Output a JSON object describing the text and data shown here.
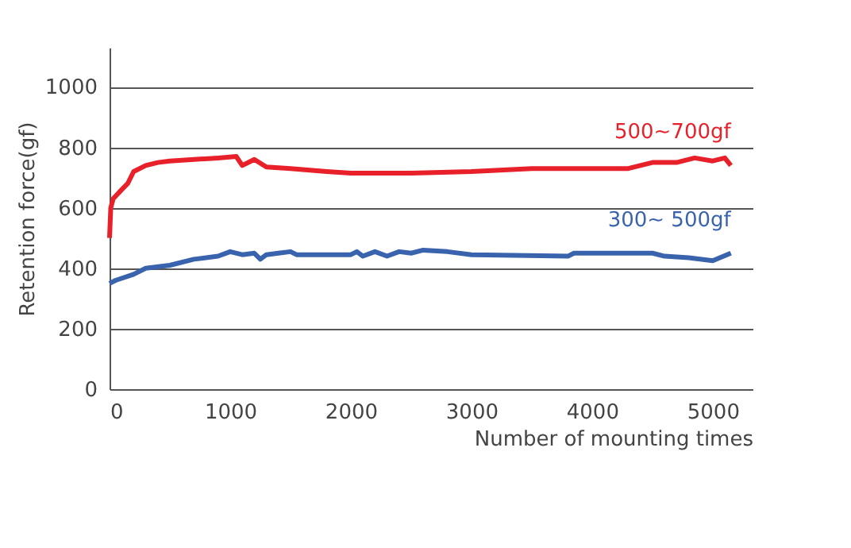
{
  "chart_data": {
    "type": "line",
    "xlabel": "Number of mounting times",
    "ylabel": "Retention force(gf)",
    "xlim": [
      0,
      5330
    ],
    "ylim": [
      0,
      1130
    ],
    "xticks": [
      0,
      1000,
      2000,
      3000,
      4000,
      5000
    ],
    "yticks": [
      0,
      200,
      400,
      600,
      800,
      1000
    ],
    "grid": "y",
    "legend": false,
    "marker": "none",
    "line_style": "solid",
    "series": [
      {
        "name": "500~700gf",
        "color": "#e8202a",
        "x": [
          0,
          10,
          30,
          100,
          150,
          200,
          300,
          400,
          500,
          700,
          900,
          1050,
          1100,
          1200,
          1300,
          1500,
          1800,
          2000,
          2500,
          3000,
          3500,
          4000,
          4300,
          4500,
          4700,
          4850,
          5000,
          5100,
          5150
        ],
        "values": [
          500,
          600,
          630,
          660,
          680,
          720,
          740,
          750,
          755,
          760,
          765,
          770,
          740,
          760,
          735,
          730,
          720,
          715,
          715,
          720,
          730,
          730,
          730,
          750,
          750,
          765,
          755,
          765,
          740
        ]
      },
      {
        "name": "300~ 500gf",
        "color": "#3a63ad",
        "x": [
          0,
          50,
          200,
          300,
          500,
          700,
          900,
          1000,
          1100,
          1200,
          1250,
          1300,
          1400,
          1500,
          1550,
          2000,
          2050,
          2100,
          2200,
          2300,
          2400,
          2500,
          2600,
          2800,
          3000,
          3800,
          3850,
          4500,
          4600,
          4800,
          5000,
          5150
        ],
        "values": [
          350,
          360,
          380,
          400,
          410,
          430,
          440,
          455,
          445,
          450,
          430,
          445,
          450,
          455,
          445,
          445,
          455,
          440,
          455,
          440,
          455,
          450,
          460,
          455,
          445,
          440,
          450,
          450,
          440,
          435,
          425,
          450
        ]
      }
    ]
  }
}
